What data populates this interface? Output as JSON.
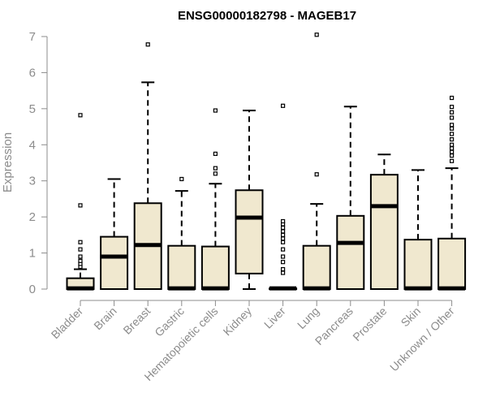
{
  "chart_data": {
    "type": "box",
    "title": "ENSG00000182798 - MAGEB17",
    "xlabel": "",
    "ylabel": "Expression",
    "ylim": [
      0,
      7
    ],
    "yticks": [
      0,
      1,
      2,
      3,
      4,
      5,
      6,
      7
    ],
    "grid": false,
    "colors": {
      "box_fill": "#f0e8cf",
      "box_stroke": "#000000",
      "axis": "#8c8c8c"
    },
    "categories": [
      "Bladder",
      "Brain",
      "Breast",
      "Gastric",
      "Hematopoietic cells",
      "Kidney",
      "Liver",
      "Lung",
      "Pancreas",
      "Prostate",
      "Skin",
      "Unknown / Other"
    ],
    "boxes": [
      {
        "min": 0,
        "q1": 0,
        "median": 0.02,
        "q3": 0.3,
        "max": 0.55,
        "outliers": [
          0.62,
          0.7,
          0.78,
          0.9,
          1.1,
          1.3,
          2.32,
          4.82
        ]
      },
      {
        "min": 0,
        "q1": 0,
        "median": 0.9,
        "q3": 1.45,
        "max": 3.05,
        "outliers": []
      },
      {
        "min": 0,
        "q1": 0,
        "median": 1.22,
        "q3": 2.38,
        "max": 5.73,
        "outliers": [
          6.78
        ]
      },
      {
        "min": 0,
        "q1": 0,
        "median": 0.02,
        "q3": 1.2,
        "max": 2.72,
        "outliers": [
          3.05
        ]
      },
      {
        "min": 0,
        "q1": 0,
        "median": 0.02,
        "q3": 1.18,
        "max": 2.92,
        "outliers": [
          3.2,
          3.35,
          3.75,
          4.95
        ]
      },
      {
        "min": 0,
        "q1": 0.43,
        "median": 1.98,
        "q3": 2.74,
        "max": 4.95,
        "outliers": []
      },
      {
        "min": 0,
        "q1": 0,
        "median": 0.02,
        "q3": 0.02,
        "max": 0.02,
        "outliers": [
          0.45,
          0.55,
          0.75,
          0.9,
          1.1,
          1.3,
          1.4,
          1.5,
          1.6,
          1.7,
          1.8,
          1.88,
          5.08
        ]
      },
      {
        "min": 0,
        "q1": 0,
        "median": 0.02,
        "q3": 1.2,
        "max": 2.36,
        "outliers": [
          3.18,
          7.05
        ]
      },
      {
        "min": 0,
        "q1": 0,
        "median": 1.28,
        "q3": 2.03,
        "max": 5.06,
        "outliers": []
      },
      {
        "min": 0,
        "q1": 0,
        "median": 2.3,
        "q3": 3.17,
        "max": 3.73,
        "outliers": []
      },
      {
        "min": 0,
        "q1": 0,
        "median": 0.02,
        "q3": 1.37,
        "max": 3.3,
        "outliers": []
      },
      {
        "min": 0,
        "q1": 0,
        "median": 0.02,
        "q3": 1.4,
        "max": 3.35,
        "outliers": [
          3.55,
          3.7,
          3.8,
          3.9,
          4.0,
          4.15,
          4.3,
          4.45,
          4.55,
          4.75,
          4.9,
          5.05,
          5.3
        ]
      }
    ]
  }
}
